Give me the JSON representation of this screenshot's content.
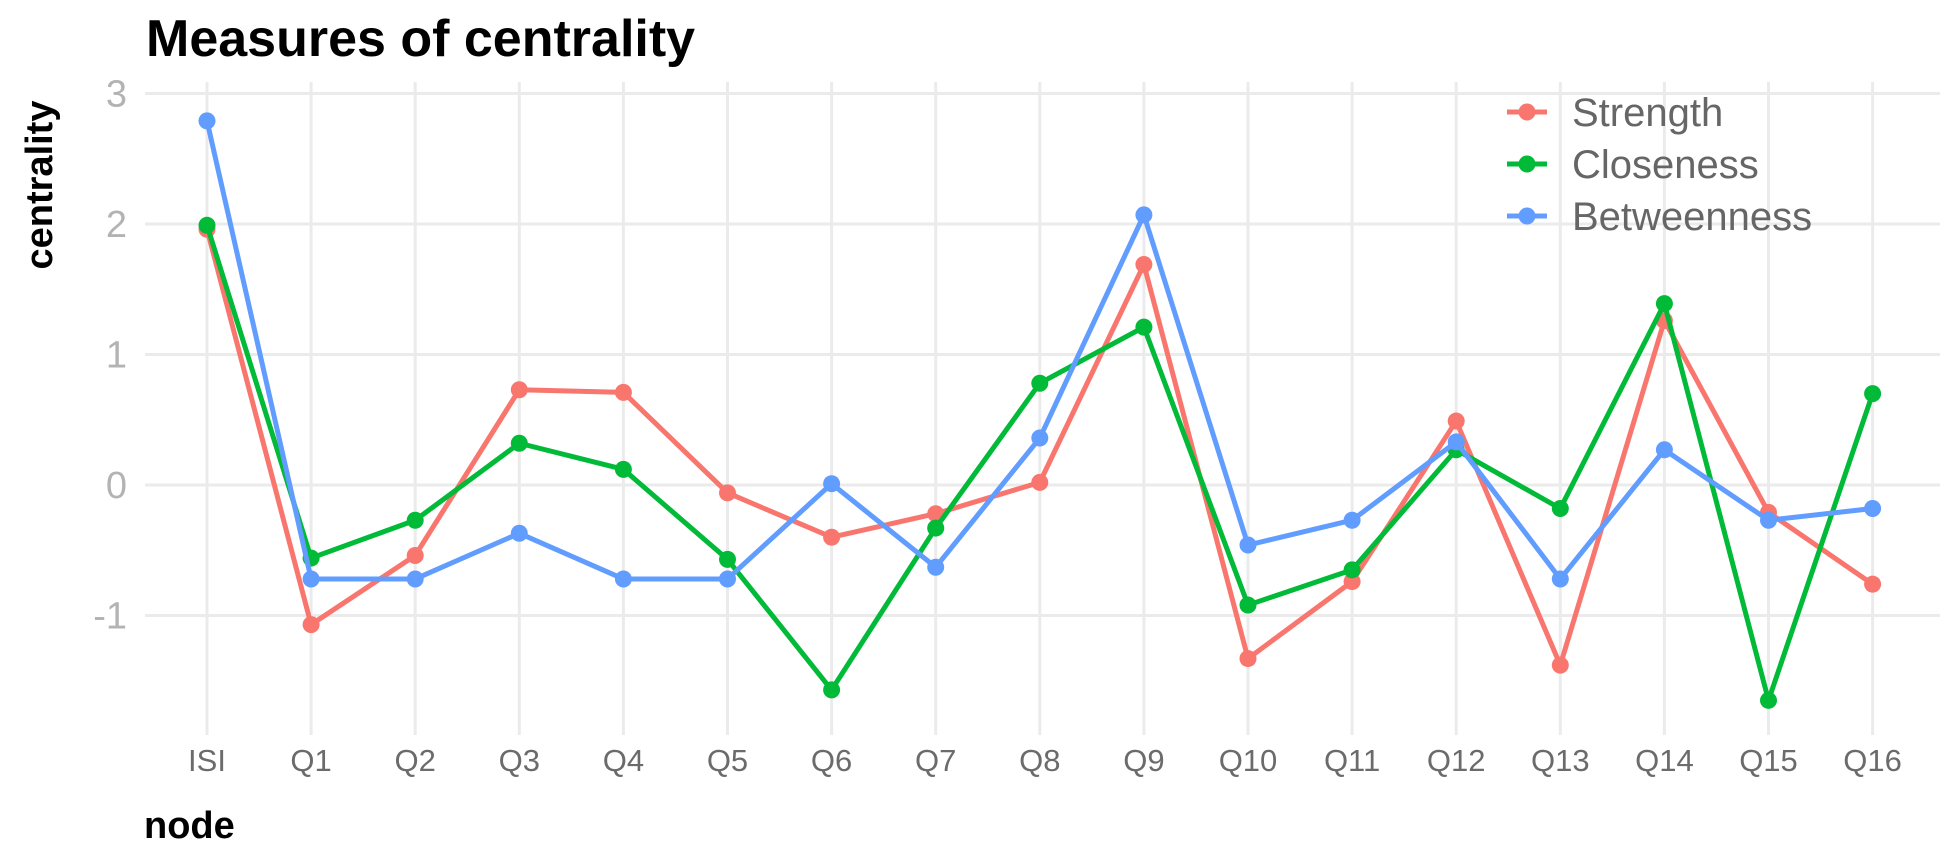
{
  "chart_data": {
    "type": "line",
    "title": "Measures of centrality",
    "xlabel": "node",
    "ylabel": "centrality",
    "categories": [
      "ISI",
      "Q1",
      "Q2",
      "Q3",
      "Q4",
      "Q5",
      "Q6",
      "Q7",
      "Q8",
      "Q9",
      "Q10",
      "Q11",
      "Q12",
      "Q13",
      "Q14",
      "Q15",
      "Q16"
    ],
    "yticks": [
      -1,
      0,
      1,
      2,
      3
    ],
    "ylim": [
      -1.9,
      3.0
    ],
    "grid": true,
    "legend_position": "top-right",
    "series": [
      {
        "name": "Strength",
        "color": "#F8766D",
        "values": [
          1.96,
          -1.07,
          -0.54,
          0.73,
          0.71,
          -0.06,
          -0.4,
          -0.22,
          0.02,
          1.69,
          -1.33,
          -0.74,
          0.49,
          -1.38,
          1.26,
          -0.21,
          -0.76
        ]
      },
      {
        "name": "Closeness",
        "color": "#00BA38",
        "values": [
          1.99,
          -0.56,
          -0.27,
          0.32,
          0.12,
          -0.57,
          -1.57,
          -0.33,
          0.78,
          1.21,
          -0.92,
          -0.65,
          0.27,
          -0.18,
          1.39,
          -1.65,
          0.7
        ]
      },
      {
        "name": "Betweenness",
        "color": "#619CFF",
        "values": [
          2.79,
          -0.72,
          -0.72,
          -0.37,
          -0.72,
          -0.72,
          0.01,
          -0.63,
          0.36,
          2.07,
          -0.46,
          -0.27,
          0.33,
          -0.72,
          0.27,
          -0.27,
          -0.18
        ]
      }
    ]
  }
}
